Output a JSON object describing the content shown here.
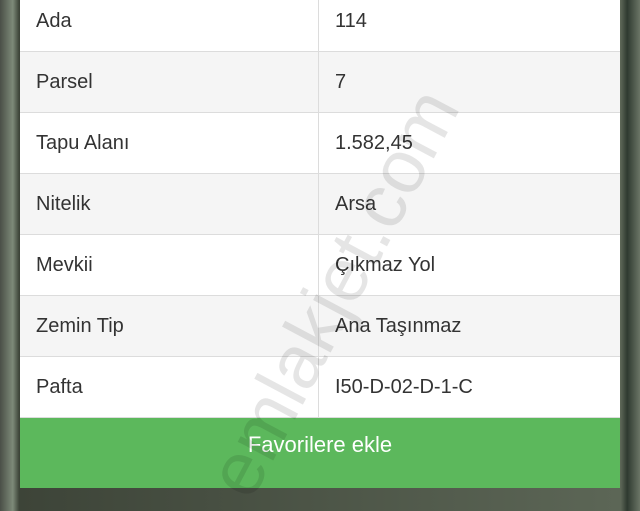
{
  "properties": [
    {
      "label": "Ada",
      "value": "114"
    },
    {
      "label": "Parsel",
      "value": "7"
    },
    {
      "label": "Tapu Alanı",
      "value": "1.582,45"
    },
    {
      "label": "Nitelik",
      "value": "Arsa"
    },
    {
      "label": "Mevkii",
      "value": "Çıkmaz Yol"
    },
    {
      "label": "Zemin Tip",
      "value": "Ana Taşınmaz"
    },
    {
      "label": "Pafta",
      "value": "I50-D-02-D-1-C"
    }
  ],
  "favorite_button": {
    "label": "Favorilere ekle",
    "color": "#5cb85c"
  },
  "watermark": "emlakjet.com"
}
